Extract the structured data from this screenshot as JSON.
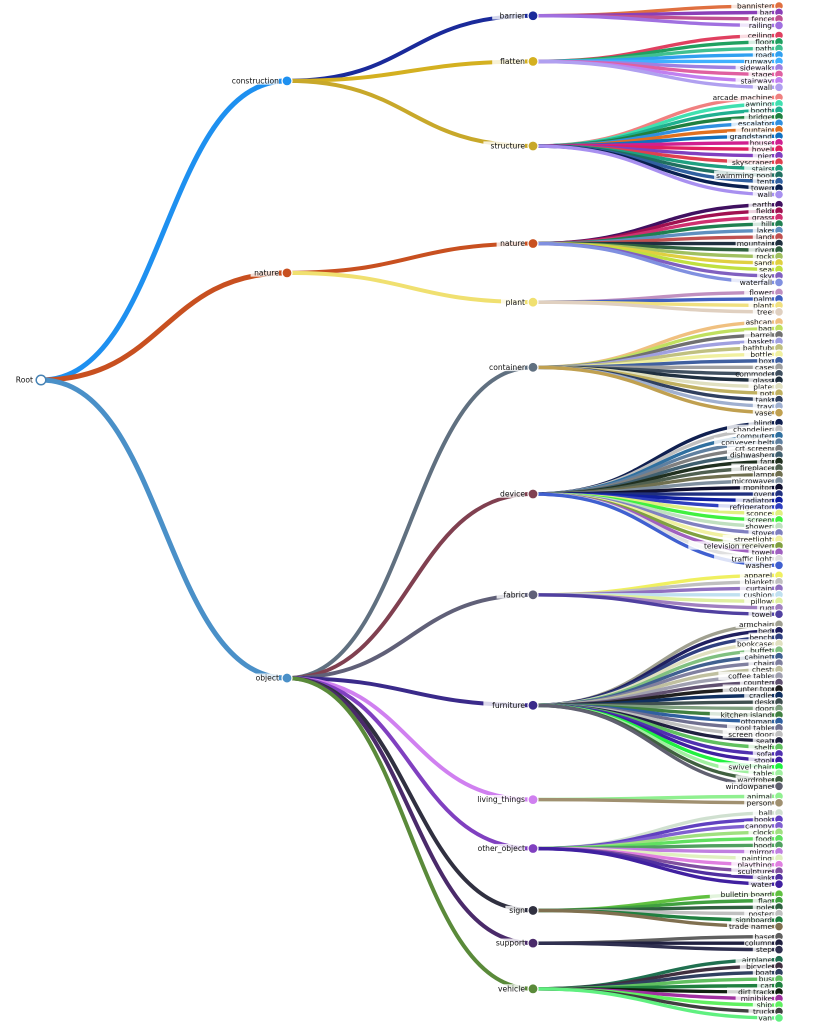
{
  "root": "Root",
  "groups": [
    {
      "name": "construction",
      "color": "#1e90f0",
      "children": [
        {
          "name": "barrier",
          "color": "#1a2a9a",
          "leaves": [
            {
              "name": "bannister",
              "color": "#e07040"
            },
            {
              "name": "bar",
              "color": "#8a3fb8"
            },
            {
              "name": "fence",
              "color": "#c05090"
            },
            {
              "name": "railing",
              "color": "#a070e0"
            }
          ]
        },
        {
          "name": "flatten",
          "color": "#d4b020",
          "leaves": [
            {
              "name": "ceiling",
              "color": "#e04060"
            },
            {
              "name": "floor",
              "color": "#20a060"
            },
            {
              "name": "path",
              "color": "#40c090"
            },
            {
              "name": "road",
              "color": "#30a0f0"
            },
            {
              "name": "runway",
              "color": "#40b0ff"
            },
            {
              "name": "sidewalk",
              "color": "#a080e0"
            },
            {
              "name": "stage",
              "color": "#e060a0"
            },
            {
              "name": "stairway",
              "color": "#c080f0"
            },
            {
              "name": "wall",
              "color": "#b0a0f0"
            }
          ]
        },
        {
          "name": "structure",
          "color": "#c8a82a",
          "leaves": [
            {
              "name": "arcade machine",
              "color": "#f08080"
            },
            {
              "name": "awning",
              "color": "#40e0b0"
            },
            {
              "name": "booth",
              "color": "#20b090"
            },
            {
              "name": "bridge",
              "color": "#208040"
            },
            {
              "name": "escalator",
              "color": "#3090e0"
            },
            {
              "name": "fountain",
              "color": "#e07020"
            },
            {
              "name": "grandstand",
              "color": "#1070c0"
            },
            {
              "name": "house",
              "color": "#d02090"
            },
            {
              "name": "hovel",
              "color": "#e02060"
            },
            {
              "name": "pier",
              "color": "#8040c0"
            },
            {
              "name": "skyscraper",
              "color": "#e04050"
            },
            {
              "name": "stairs",
              "color": "#20a080"
            },
            {
              "name": "swimming pool",
              "color": "#207060"
            },
            {
              "name": "tent",
              "color": "#3060a0"
            },
            {
              "name": "tower",
              "color": "#0a2050"
            },
            {
              "name": "wall",
              "color": "#a890f0"
            }
          ]
        }
      ]
    },
    {
      "name": "nature",
      "color": "#c85020",
      "children": [
        {
          "name": "nature",
          "color": "#c85020",
          "leaves": [
            {
              "name": "earth",
              "color": "#401060"
            },
            {
              "name": "field",
              "color": "#a01050"
            },
            {
              "name": "grass",
              "color": "#d03070"
            },
            {
              "name": "hill",
              "color": "#208050"
            },
            {
              "name": "lake",
              "color": "#6090c0"
            },
            {
              "name": "land",
              "color": "#c05050"
            },
            {
              "name": "mountain",
              "color": "#203040"
            },
            {
              "name": "river",
              "color": "#306040"
            },
            {
              "name": "rock",
              "color": "#a0c060"
            },
            {
              "name": "sand",
              "color": "#e0d040"
            },
            {
              "name": "sea",
              "color": "#c0e040"
            },
            {
              "name": "sky",
              "color": "#8060c0"
            },
            {
              "name": "waterfall",
              "color": "#8090e0"
            }
          ]
        },
        {
          "name": "plant",
          "color": "#f0e070",
          "leaves": [
            {
              "name": "flower",
              "color": "#c090c0"
            },
            {
              "name": "palm",
              "color": "#4060c0"
            },
            {
              "name": "plant",
              "color": "#f0e080"
            },
            {
              "name": "tree",
              "color": "#e0d0c0"
            }
          ]
        }
      ]
    },
    {
      "name": "object",
      "color": "#4a90c8",
      "children": [
        {
          "name": "container",
          "color": "#607080",
          "leaves": [
            {
              "name": "ashcan",
              "color": "#f0c080"
            },
            {
              "name": "bag",
              "color": "#c0e060"
            },
            {
              "name": "barrel",
              "color": "#707070"
            },
            {
              "name": "basket",
              "color": "#a0a0e0"
            },
            {
              "name": "bathtub",
              "color": "#c0c080"
            },
            {
              "name": "bottle",
              "color": "#f0f0a0"
            },
            {
              "name": "box",
              "color": "#4060a0"
            },
            {
              "name": "case",
              "color": "#a0a0a0"
            },
            {
              "name": "commode",
              "color": "#405060"
            },
            {
              "name": "glass",
              "color": "#203040"
            },
            {
              "name": "plate",
              "color": "#e0e0c0"
            },
            {
              "name": "pot",
              "color": "#c0b060"
            },
            {
              "name": "tank",
              "color": "#304060"
            },
            {
              "name": "tray",
              "color": "#a0b0d0"
            },
            {
              "name": "vase",
              "color": "#c0a050"
            }
          ]
        },
        {
          "name": "device",
          "color": "#804050",
          "leaves": [
            {
              "name": "blind",
              "color": "#102050"
            },
            {
              "name": "chandelier",
              "color": "#c0c0c0"
            },
            {
              "name": "computer",
              "color": "#3070a0"
            },
            {
              "name": "conveyer belt",
              "color": "#6080a0"
            },
            {
              "name": "crt screen",
              "color": "#808080"
            },
            {
              "name": "dishwasher",
              "color": "#406070"
            },
            {
              "name": "fan",
              "color": "#203020"
            },
            {
              "name": "fireplace",
              "color": "#506050"
            },
            {
              "name": "lamp",
              "color": "#707050"
            },
            {
              "name": "microwave",
              "color": "#8090a0"
            },
            {
              "name": "monitor",
              "color": "#101030"
            },
            {
              "name": "oven",
              "color": "#203080"
            },
            {
              "name": "radiator",
              "color": "#1020a0"
            },
            {
              "name": "refrigerator",
              "color": "#3040c0"
            },
            {
              "name": "sconce",
              "color": "#e0f080"
            },
            {
              "name": "screen",
              "color": "#40f040"
            },
            {
              "name": "shower",
              "color": "#c0e0c0"
            },
            {
              "name": "stove",
              "color": "#8080c0"
            },
            {
              "name": "streetlight",
              "color": "#f0f0a0"
            },
            {
              "name": "television receiver",
              "color": "#80a040"
            },
            {
              "name": "towel",
              "color": "#a060c0"
            },
            {
              "name": "traffic light",
              "color": "#e0e0e0"
            },
            {
              "name": "washer",
              "color": "#4060d0"
            }
          ]
        },
        {
          "name": "fabric",
          "color": "#606078",
          "leaves": [
            {
              "name": "apparel",
              "color": "#f0f060"
            },
            {
              "name": "blanket",
              "color": "#c0c0c0"
            },
            {
              "name": "curtain",
              "color": "#9070c0"
            },
            {
              "name": "cushion",
              "color": "#c0e0f0"
            },
            {
              "name": "pillow",
              "color": "#e0f0a0"
            },
            {
              "name": "rug",
              "color": "#a080c0"
            },
            {
              "name": "towel",
              "color": "#5040a0"
            }
          ]
        },
        {
          "name": "furniture",
          "color": "#3a2a8a",
          "leaves": [
            {
              "name": "armchair",
              "color": "#a0a090"
            },
            {
              "name": "bed",
              "color": "#202060"
            },
            {
              "name": "bench",
              "color": "#304080"
            },
            {
              "name": "bookcase",
              "color": "#e0e0c0"
            },
            {
              "name": "buffet",
              "color": "#80c080"
            },
            {
              "name": "cabinet",
              "color": "#406090"
            },
            {
              "name": "chair",
              "color": "#8080a0"
            },
            {
              "name": "chest",
              "color": "#c0c0a0"
            },
            {
              "name": "coffee table",
              "color": "#a0a0b0"
            },
            {
              "name": "counter",
              "color": "#605070"
            },
            {
              "name": "counter top",
              "color": "#202020"
            },
            {
              "name": "cradle",
              "color": "#103060"
            },
            {
              "name": "desk",
              "color": "#405050"
            },
            {
              "name": "door",
              "color": "#80a080"
            },
            {
              "name": "kitchen island",
              "color": "#408040"
            },
            {
              "name": "ottoman",
              "color": "#3060a0"
            },
            {
              "name": "pool table",
              "color": "#707090"
            },
            {
              "name": "screen door",
              "color": "#c0c0c0"
            },
            {
              "name": "seat",
              "color": "#202040"
            },
            {
              "name": "shelf",
              "color": "#60c060"
            },
            {
              "name": "sofa",
              "color": "#5030b0"
            },
            {
              "name": "stool",
              "color": "#4020a0"
            },
            {
              "name": "swivel chair",
              "color": "#20f040"
            },
            {
              "name": "table",
              "color": "#a0f0a0"
            },
            {
              "name": "wardrobe",
              "color": "#406040"
            },
            {
              "name": "windowpane",
              "color": "#606070"
            }
          ]
        },
        {
          "name": "living_things",
          "color": "#d080f0",
          "leaves": [
            {
              "name": "animal",
              "color": "#90f090"
            },
            {
              "name": "person",
              "color": "#a09070"
            }
          ]
        },
        {
          "name": "other_object",
          "color": "#8040c0",
          "leaves": [
            {
              "name": "ball",
              "color": "#d0e0d0"
            },
            {
              "name": "book",
              "color": "#6040c0"
            },
            {
              "name": "canopy",
              "color": "#8060d0"
            },
            {
              "name": "clock",
              "color": "#a0e080"
            },
            {
              "name": "food",
              "color": "#60e060"
            },
            {
              "name": "hood",
              "color": "#50a060"
            },
            {
              "name": "mirror",
              "color": "#c080e0"
            },
            {
              "name": "painting",
              "color": "#e0f0c0"
            },
            {
              "name": "plaything",
              "color": "#e080e0"
            },
            {
              "name": "sculpture",
              "color": "#8050a0"
            },
            {
              "name": "sink",
              "color": "#5030a0"
            },
            {
              "name": "water",
              "color": "#4020a0"
            }
          ]
        },
        {
          "name": "sign",
          "color": "#303040",
          "leaves": [
            {
              "name": "bulletin board",
              "color": "#60c040"
            },
            {
              "name": "flag",
              "color": "#40a040"
            },
            {
              "name": "pole",
              "color": "#306040"
            },
            {
              "name": "poster",
              "color": "#c0c0c0"
            },
            {
              "name": "signboard",
              "color": "#208040"
            },
            {
              "name": "trade name",
              "color": "#807050"
            }
          ]
        },
        {
          "name": "support",
          "color": "#4a2a6a",
          "leaves": [
            {
              "name": "base",
              "color": "#606060"
            },
            {
              "name": "column",
              "color": "#202040"
            },
            {
              "name": "step",
              "color": "#303050"
            }
          ]
        },
        {
          "name": "vehicle",
          "color": "#5a8a3a",
          "leaves": [
            {
              "name": "airplane",
              "color": "#207050"
            },
            {
              "name": "bicycle",
              "color": "#403040"
            },
            {
              "name": "boat",
              "color": "#304060"
            },
            {
              "name": "bus",
              "color": "#60c060"
            },
            {
              "name": "car",
              "color": "#208040"
            },
            {
              "name": "dirt track",
              "color": "#102010"
            },
            {
              "name": "minibike",
              "color": "#a030a0"
            },
            {
              "name": "ship",
              "color": "#60f060"
            },
            {
              "name": "truck",
              "color": "#404040"
            },
            {
              "name": "van",
              "color": "#60f080"
            }
          ]
        }
      ]
    }
  ]
}
